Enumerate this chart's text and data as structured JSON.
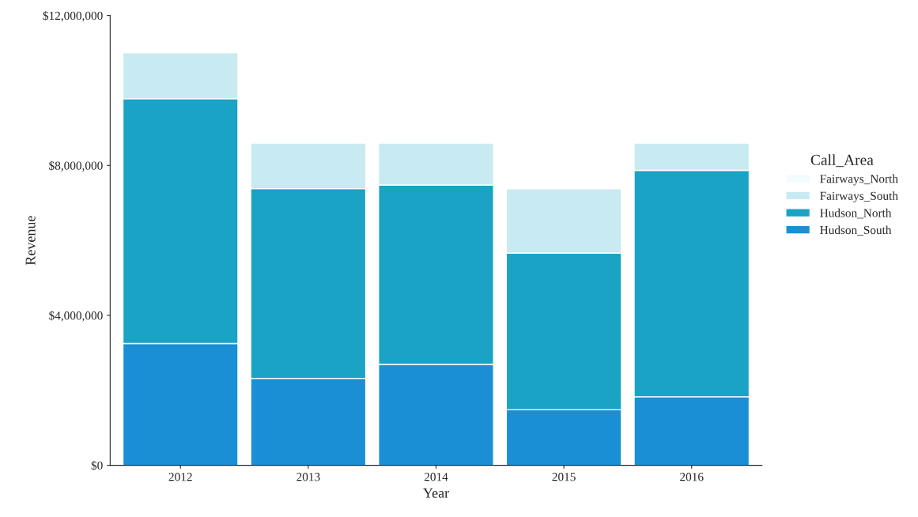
{
  "chart_data": {
    "type": "bar",
    "stacked": true,
    "xlabel": "Year",
    "ylabel": "Revenue",
    "legend_title": "Call_Area",
    "legend": "right",
    "categories": [
      "2012",
      "2013",
      "2014",
      "2015",
      "2016"
    ],
    "series": [
      {
        "name": "Hudson_South",
        "color": "#1a8fd6",
        "values": [
          3250000,
          2320000,
          2690000,
          1480000,
          1830000
        ]
      },
      {
        "name": "Hudson_North",
        "color": "#1aa3c4",
        "values": [
          6530000,
          5060000,
          4790000,
          4180000,
          6040000
        ]
      },
      {
        "name": "Fairways_South",
        "color": "#c8eaf2",
        "values": [
          1230000,
          1220000,
          1120000,
          1720000,
          730000
        ]
      },
      {
        "name": "Fairways_North",
        "color": "#f4fbfd",
        "values": [
          0,
          0,
          0,
          0,
          0
        ]
      }
    ],
    "ylim": [
      0,
      12000000
    ],
    "yticks": [
      {
        "value": 0,
        "label": "$0"
      },
      {
        "value": 4000000,
        "label": "$4,000,000"
      },
      {
        "value": 8000000,
        "label": "$8,000,000"
      },
      {
        "value": 12000000,
        "label": "$12,000,000"
      }
    ],
    "grid": false
  }
}
